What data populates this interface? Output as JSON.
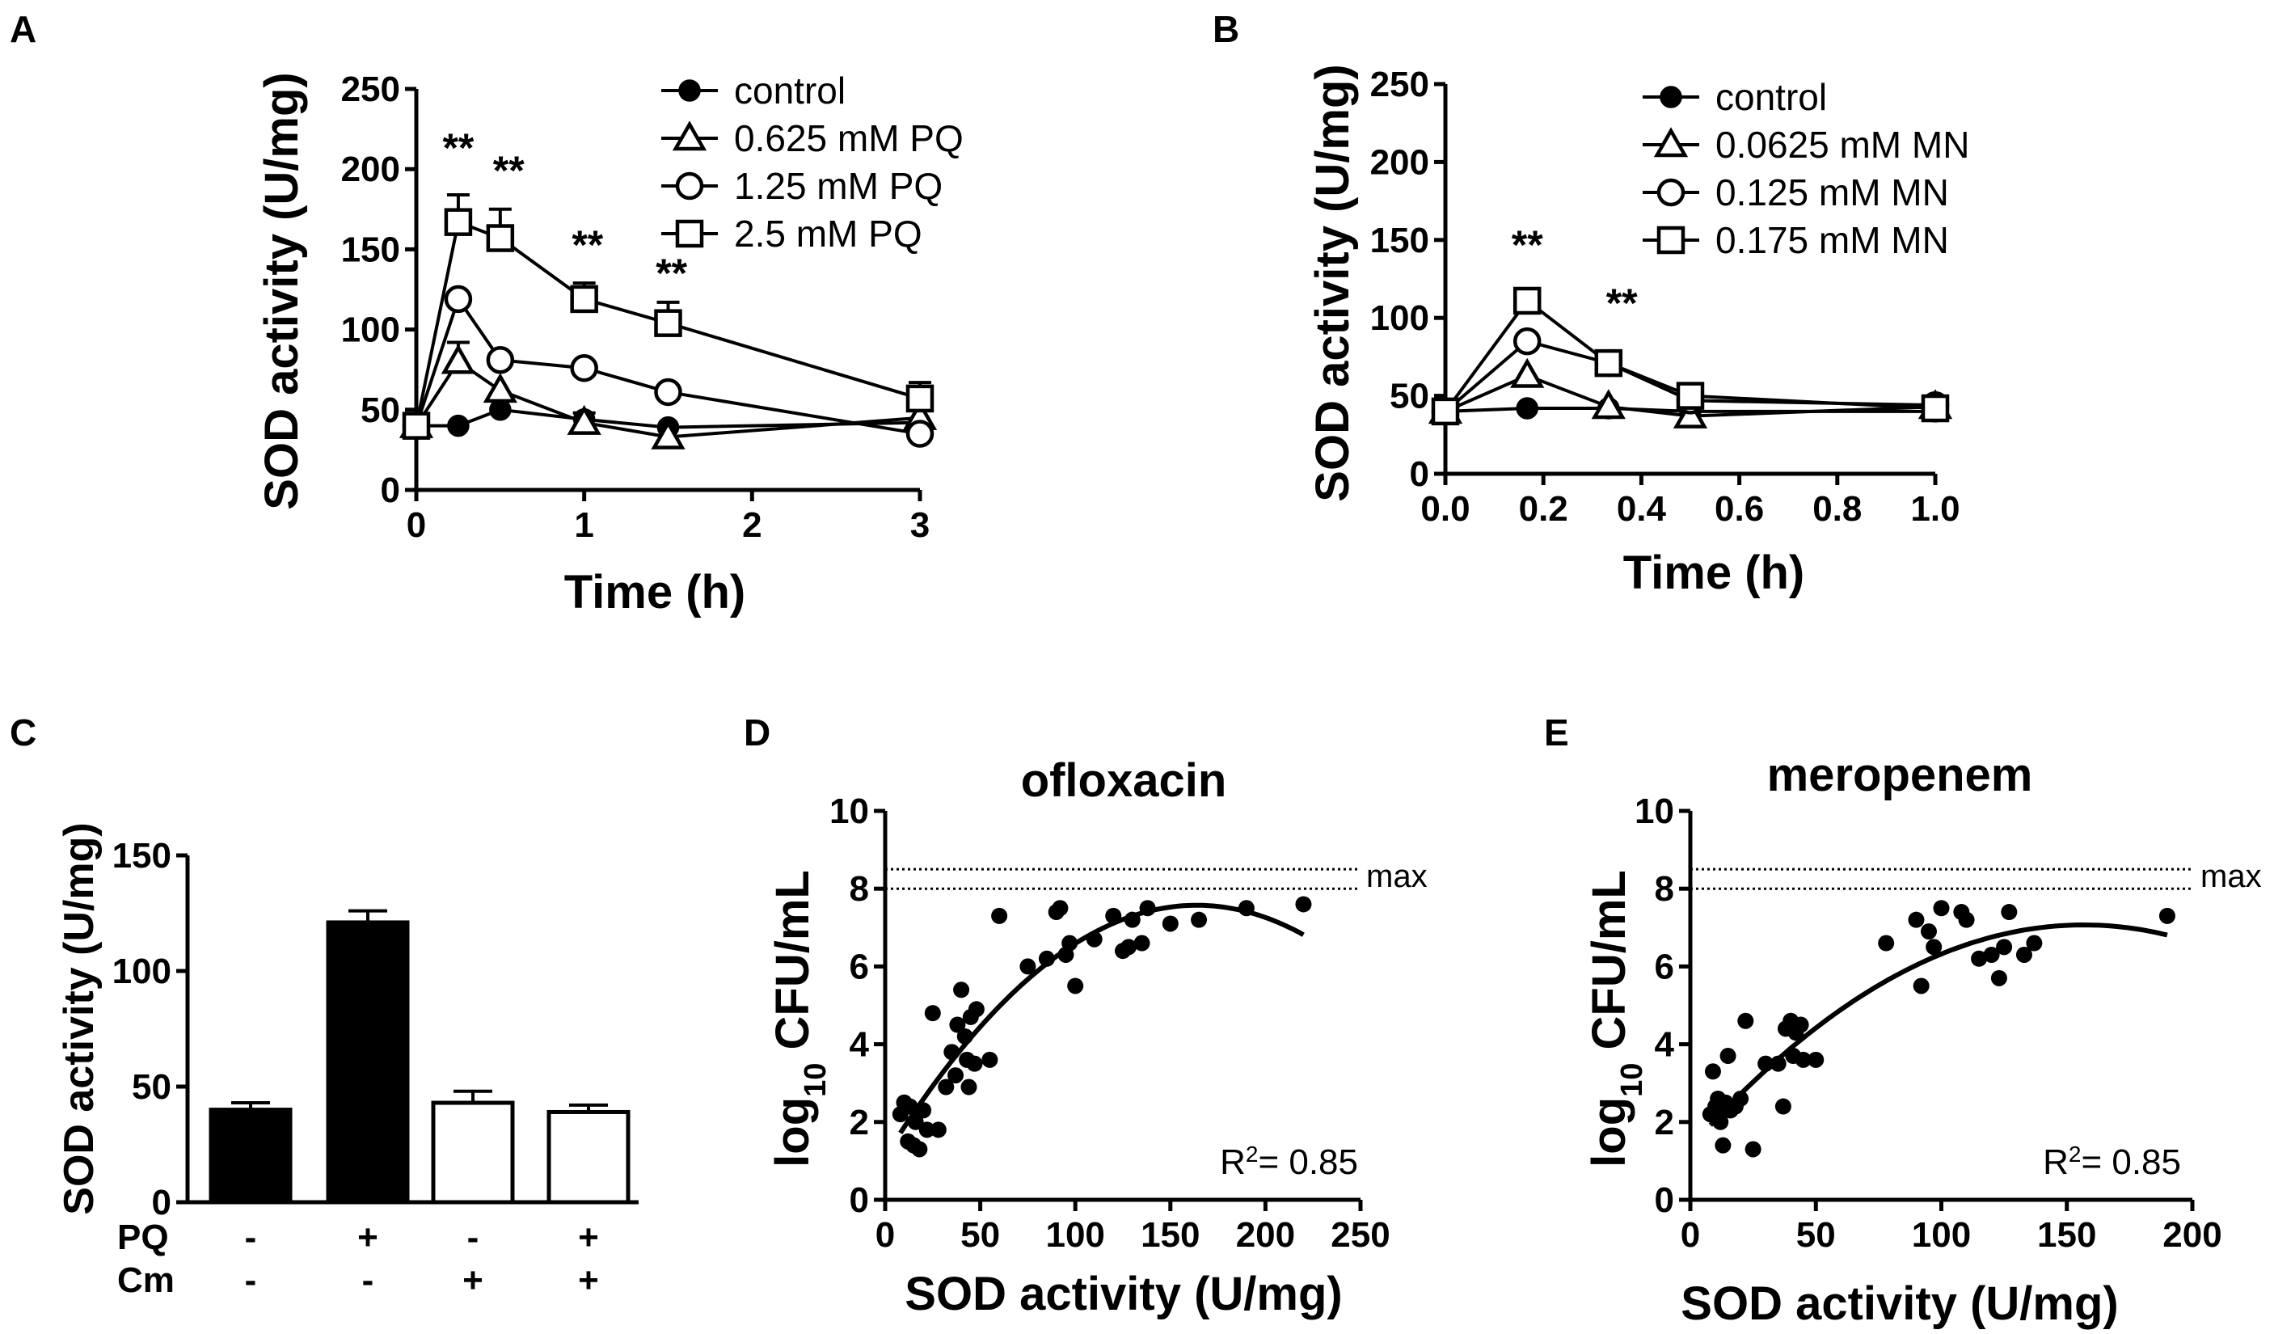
{
  "chart_data": [
    {
      "id": "A",
      "type": "line",
      "panel_label": "A",
      "xlabel": "Time (h)",
      "ylabel": "SOD activity (U/mg)",
      "xlim": [
        0,
        3
      ],
      "ylim": [
        0,
        250
      ],
      "xticks": [
        0,
        1,
        2,
        3
      ],
      "yticks": [
        0,
        50,
        100,
        150,
        200,
        250
      ],
      "series": [
        {
          "name": "control",
          "marker": "filled-circle",
          "x": [
            0,
            0.25,
            0.5,
            1,
            1.5,
            3
          ],
          "y": [
            40,
            40,
            50,
            44,
            39,
            42
          ],
          "err": [
            0,
            0,
            0,
            4,
            0,
            0
          ]
        },
        {
          "name": "0.625 mM PQ",
          "marker": "open-triangle",
          "x": [
            0,
            0.25,
            0.5,
            1,
            1.5,
            3
          ],
          "y": [
            40,
            80,
            62,
            42,
            33,
            45
          ],
          "err": [
            0,
            12,
            0,
            0,
            0,
            0
          ]
        },
        {
          "name": "1.25 mM PQ",
          "marker": "open-circle",
          "x": [
            0,
            0.25,
            0.5,
            1,
            1.5,
            3
          ],
          "y": [
            40,
            119,
            81,
            76,
            61,
            35
          ],
          "err": [
            0,
            0,
            0,
            0,
            0,
            7
          ]
        },
        {
          "name": "2.5 mM PQ",
          "marker": "open-square",
          "x": [
            0,
            0.25,
            0.5,
            1,
            1.5,
            3
          ],
          "y": [
            40,
            167,
            157,
            119,
            104,
            57
          ],
          "err": [
            0,
            17,
            18,
            10,
            13,
            10
          ]
        }
      ],
      "annotations": [
        {
          "text": "**",
          "x": 0.25
        },
        {
          "text": "**",
          "x": 0.55
        },
        {
          "text": "**",
          "x": 1.02
        },
        {
          "text": "**",
          "x": 1.52
        }
      ]
    },
    {
      "id": "B",
      "type": "line",
      "panel_label": "B",
      "xlabel": "Time (h)",
      "ylabel": "SOD activity (U/mg)",
      "xlim": [
        0,
        1
      ],
      "ylim": [
        0,
        250
      ],
      "xticks": [
        "0.0",
        "0.2",
        "0.4",
        "0.6",
        "0.8",
        "1.0"
      ],
      "yticks": [
        0,
        50,
        100,
        150,
        200,
        250
      ],
      "series": [
        {
          "name": "control",
          "marker": "filled-circle",
          "x": [
            0,
            0.167,
            0.333,
            0.5,
            1.0
          ],
          "y": [
            40,
            42,
            42,
            40,
            40
          ]
        },
        {
          "name": "0.0625 mM MN",
          "marker": "open-triangle",
          "x": [
            0,
            0.167,
            0.333,
            0.5,
            1.0
          ],
          "y": [
            40,
            63,
            43,
            37,
            43
          ]
        },
        {
          "name": "0.125 mM MN",
          "marker": "open-circle",
          "x": [
            0,
            0.167,
            0.333,
            0.5,
            1.0
          ],
          "y": [
            40,
            85,
            71,
            47,
            44
          ]
        },
        {
          "name": "0.175 mM MN",
          "marker": "open-square",
          "x": [
            0,
            0.167,
            0.333,
            0.5,
            1.0
          ],
          "y": [
            40,
            111,
            71,
            50,
            42
          ]
        }
      ],
      "annotations": [
        {
          "text": "**",
          "x": 0.167
        },
        {
          "text": "**",
          "x": 0.36
        }
      ]
    },
    {
      "id": "C",
      "type": "bar",
      "panel_label": "C",
      "ylabel": "SOD activity (U/mg)",
      "ylim": [
        0,
        150
      ],
      "yticks": [
        0,
        50,
        100,
        150
      ],
      "values": [
        40,
        121,
        43,
        39
      ],
      "errors": [
        3,
        5,
        5,
        3
      ],
      "fills": [
        "black",
        "black",
        "white",
        "white"
      ],
      "row_labels": [
        "PQ",
        "Cm"
      ],
      "pq": [
        "-",
        "+",
        "-",
        "+"
      ],
      "cm": [
        "-",
        "-",
        "+",
        "+"
      ]
    },
    {
      "id": "D",
      "type": "scatter",
      "panel_label": "D",
      "title": "ofloxacin",
      "xlabel": "SOD activity (U/mg)",
      "ylabel": "log10 CFU/mL",
      "xlim": [
        0,
        250
      ],
      "ylim": [
        0,
        10
      ],
      "xticks": [
        0,
        50,
        100,
        150,
        200,
        250
      ],
      "yticks": [
        0,
        2,
        4,
        6,
        8,
        10
      ],
      "max_label": "max",
      "max_lines": [
        8.0,
        8.5
      ],
      "fit_poly": [
        1.1,
        0.079,
        -0.000241
      ],
      "fit_range": [
        8,
        220
      ],
      "r2_text": "R",
      "r2_sup": "2",
      "r2_value": "= 0.85",
      "points": [
        [
          8,
          2.2
        ],
        [
          10,
          2.5
        ],
        [
          12,
          1.5
        ],
        [
          15,
          1.4
        ],
        [
          13,
          2.4
        ],
        [
          16,
          2.0
        ],
        [
          18,
          1.3
        ],
        [
          20,
          2.3
        ],
        [
          22,
          1.8
        ],
        [
          25,
          4.8
        ],
        [
          28,
          1.8
        ],
        [
          32,
          2.9
        ],
        [
          35,
          3.8
        ],
        [
          37,
          3.2
        ],
        [
          38,
          4.5
        ],
        [
          40,
          5.4
        ],
        [
          42,
          4.2
        ],
        [
          43,
          3.6
        ],
        [
          44,
          2.9
        ],
        [
          45,
          4.7
        ],
        [
          47,
          3.5
        ],
        [
          48,
          4.9
        ],
        [
          55,
          3.6
        ],
        [
          60,
          7.3
        ],
        [
          75,
          6.0
        ],
        [
          85,
          6.2
        ],
        [
          90,
          7.4
        ],
        [
          92,
          7.5
        ],
        [
          95,
          6.3
        ],
        [
          97,
          6.6
        ],
        [
          100,
          5.5
        ],
        [
          110,
          6.7
        ],
        [
          120,
          7.3
        ],
        [
          125,
          6.4
        ],
        [
          128,
          6.5
        ],
        [
          130,
          7.2
        ],
        [
          135,
          6.6
        ],
        [
          138,
          7.5
        ],
        [
          150,
          7.1
        ],
        [
          165,
          7.2
        ],
        [
          190,
          7.5
        ],
        [
          220,
          7.6
        ]
      ]
    },
    {
      "id": "E",
      "type": "scatter",
      "panel_label": "E",
      "title": "meropenem",
      "xlabel": "SOD activity (U/mg)",
      "ylabel": "log10 CFU/mL",
      "xlim": [
        0,
        200
      ],
      "ylim": [
        0,
        10
      ],
      "xticks": [
        0,
        50,
        100,
        150,
        200
      ],
      "yticks": [
        0,
        2,
        4,
        6,
        8,
        10
      ],
      "max_label": "max",
      "max_lines": [
        8.0,
        8.5
      ],
      "fit_poly": [
        1.35,
        0.073,
        -0.000233
      ],
      "fit_range": [
        8,
        190
      ],
      "r2_text": "R",
      "r2_sup": "2",
      "r2_value": "= 0.85",
      "points": [
        [
          8,
          2.2
        ],
        [
          9,
          3.3
        ],
        [
          10,
          2.4
        ],
        [
          11,
          2.6
        ],
        [
          12,
          2.0
        ],
        [
          13,
          1.4
        ],
        [
          14,
          2.5
        ],
        [
          15,
          3.7
        ],
        [
          16,
          2.3
        ],
        [
          18,
          2.4
        ],
        [
          20,
          2.6
        ],
        [
          22,
          4.6
        ],
        [
          25,
          1.3
        ],
        [
          30,
          3.5
        ],
        [
          35,
          3.5
        ],
        [
          37,
          2.4
        ],
        [
          38,
          4.4
        ],
        [
          40,
          4.6
        ],
        [
          41,
          3.7
        ],
        [
          42,
          4.3
        ],
        [
          44,
          4.5
        ],
        [
          45,
          3.6
        ],
        [
          50,
          3.6
        ],
        [
          78,
          6.6
        ],
        [
          90,
          7.2
        ],
        [
          92,
          5.5
        ],
        [
          95,
          6.9
        ],
        [
          97,
          6.5
        ],
        [
          100,
          7.5
        ],
        [
          108,
          7.4
        ],
        [
          110,
          7.2
        ],
        [
          115,
          6.2
        ],
        [
          120,
          6.3
        ],
        [
          123,
          5.7
        ],
        [
          125,
          6.5
        ],
        [
          127,
          7.4
        ],
        [
          133,
          6.3
        ],
        [
          137,
          6.6
        ],
        [
          190,
          7.3
        ]
      ]
    }
  ]
}
